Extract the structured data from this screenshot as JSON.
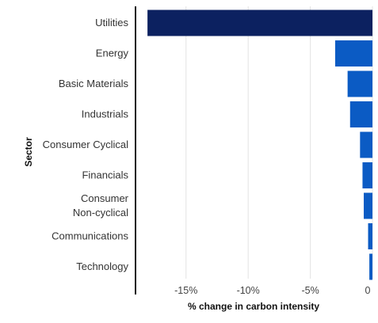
{
  "chart_data": {
    "type": "bar",
    "orientation": "horizontal",
    "categories": [
      "Utilities",
      "Energy",
      "Basic Materials",
      "Industrials",
      "Consumer Cyclical",
      "Financials",
      "Consumer Non-cyclical",
      "Communications",
      "Technology"
    ],
    "category_label_lines": [
      [
        "Utilities"
      ],
      [
        "Energy"
      ],
      [
        "Basic Materials"
      ],
      [
        "Industrials"
      ],
      [
        "Consumer Cyclical"
      ],
      [
        "Financials"
      ],
      [
        "Consumer",
        "Non-cyclical"
      ],
      [
        "Communications"
      ],
      [
        "Technology"
      ]
    ],
    "values": [
      -18.1,
      -3.0,
      -2.0,
      -1.8,
      -1.0,
      -0.8,
      -0.7,
      -0.35,
      -0.25
    ],
    "xlabel": "% change in carbon intensity",
    "ylabel": "Sector",
    "xlim": [
      -19.0,
      0
    ],
    "xticks": [
      -15,
      -10,
      -5,
      0
    ],
    "xtick_labels": [
      "-15%",
      "-10%",
      "-5%",
      "0"
    ],
    "grid": "vertical",
    "colors": {
      "highlight": "#0c2160",
      "bar": "#0b5bc4",
      "axis": "#1a1a1a",
      "grid": "#e3e3e3"
    }
  }
}
